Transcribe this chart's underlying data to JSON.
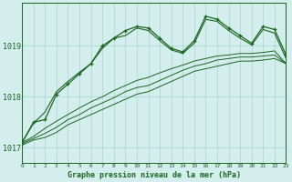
{
  "title": "Graphe pression niveau de la mer (hPa)",
  "background_color": "#d4eeee",
  "grid_color": "#a8d4d4",
  "line_color": "#1a6620",
  "xlim": [
    0,
    23
  ],
  "ylim": [
    1016.7,
    1019.85
  ],
  "yticks": [
    1017,
    1018,
    1019
  ],
  "xticks": [
    0,
    1,
    2,
    3,
    4,
    5,
    6,
    7,
    8,
    9,
    10,
    11,
    12,
    13,
    14,
    15,
    16,
    17,
    18,
    19,
    20,
    21,
    22,
    23
  ],
  "line1_x": [
    0,
    1,
    2,
    3,
    4,
    5,
    6,
    7,
    8,
    9,
    10,
    11,
    12,
    13,
    14,
    15,
    16,
    17,
    18,
    19,
    20,
    21,
    22,
    23
  ],
  "line1_y": [
    1017.05,
    1017.15,
    1017.2,
    1017.3,
    1017.45,
    1017.55,
    1017.65,
    1017.75,
    1017.85,
    1017.95,
    1018.05,
    1018.1,
    1018.2,
    1018.3,
    1018.4,
    1018.5,
    1018.55,
    1018.6,
    1018.65,
    1018.7,
    1018.7,
    1018.72,
    1018.75,
    1018.65
  ],
  "line2_x": [
    0,
    1,
    2,
    3,
    4,
    5,
    6,
    7,
    8,
    9,
    10,
    11,
    12,
    13,
    14,
    15,
    16,
    17,
    18,
    19,
    20,
    21,
    22,
    23
  ],
  "line2_y": [
    1017.08,
    1017.18,
    1017.28,
    1017.4,
    1017.55,
    1017.65,
    1017.78,
    1017.88,
    1017.98,
    1018.1,
    1018.18,
    1018.22,
    1018.32,
    1018.42,
    1018.52,
    1018.6,
    1018.65,
    1018.72,
    1018.75,
    1018.78,
    1018.78,
    1018.8,
    1018.82,
    1018.65
  ],
  "line3_x": [
    0,
    1,
    2,
    3,
    4,
    5,
    6,
    7,
    8,
    9,
    10,
    11,
    12,
    13,
    14,
    15,
    16,
    17,
    18,
    19,
    20,
    21,
    22,
    23
  ],
  "line3_y": [
    1017.1,
    1017.22,
    1017.38,
    1017.52,
    1017.65,
    1017.78,
    1017.9,
    1018.0,
    1018.12,
    1018.22,
    1018.32,
    1018.38,
    1018.47,
    1018.55,
    1018.62,
    1018.7,
    1018.75,
    1018.8,
    1018.82,
    1018.85,
    1018.85,
    1018.87,
    1018.9,
    1018.65
  ],
  "wavy_x": [
    0,
    1,
    2,
    3,
    4,
    5,
    6,
    7,
    8,
    9,
    10,
    11,
    12,
    13,
    14,
    15,
    16,
    17,
    18,
    19,
    20,
    21,
    22,
    23
  ],
  "wavy_y": [
    1017.1,
    1017.5,
    1017.55,
    1018.05,
    1018.25,
    1018.45,
    1018.65,
    1019.0,
    1019.15,
    1019.3,
    1019.38,
    1019.35,
    1019.15,
    1018.95,
    1018.88,
    1019.1,
    1019.58,
    1019.52,
    1019.35,
    1019.2,
    1019.05,
    1019.38,
    1019.32,
    1018.82
  ],
  "wavy2_x": [
    0,
    1,
    2,
    3,
    4,
    5,
    6,
    7,
    8,
    9,
    10,
    11,
    12,
    13,
    14,
    15,
    16,
    17,
    18,
    19,
    20,
    21,
    22,
    23
  ],
  "wavy2_y": [
    1017.1,
    1017.48,
    1017.7,
    1018.1,
    1018.3,
    1018.48,
    1018.65,
    1018.95,
    1019.15,
    1019.2,
    1019.35,
    1019.3,
    1019.1,
    1018.92,
    1018.85,
    1019.05,
    1019.52,
    1019.48,
    1019.3,
    1019.15,
    1019.02,
    1019.32,
    1019.25,
    1018.75
  ]
}
